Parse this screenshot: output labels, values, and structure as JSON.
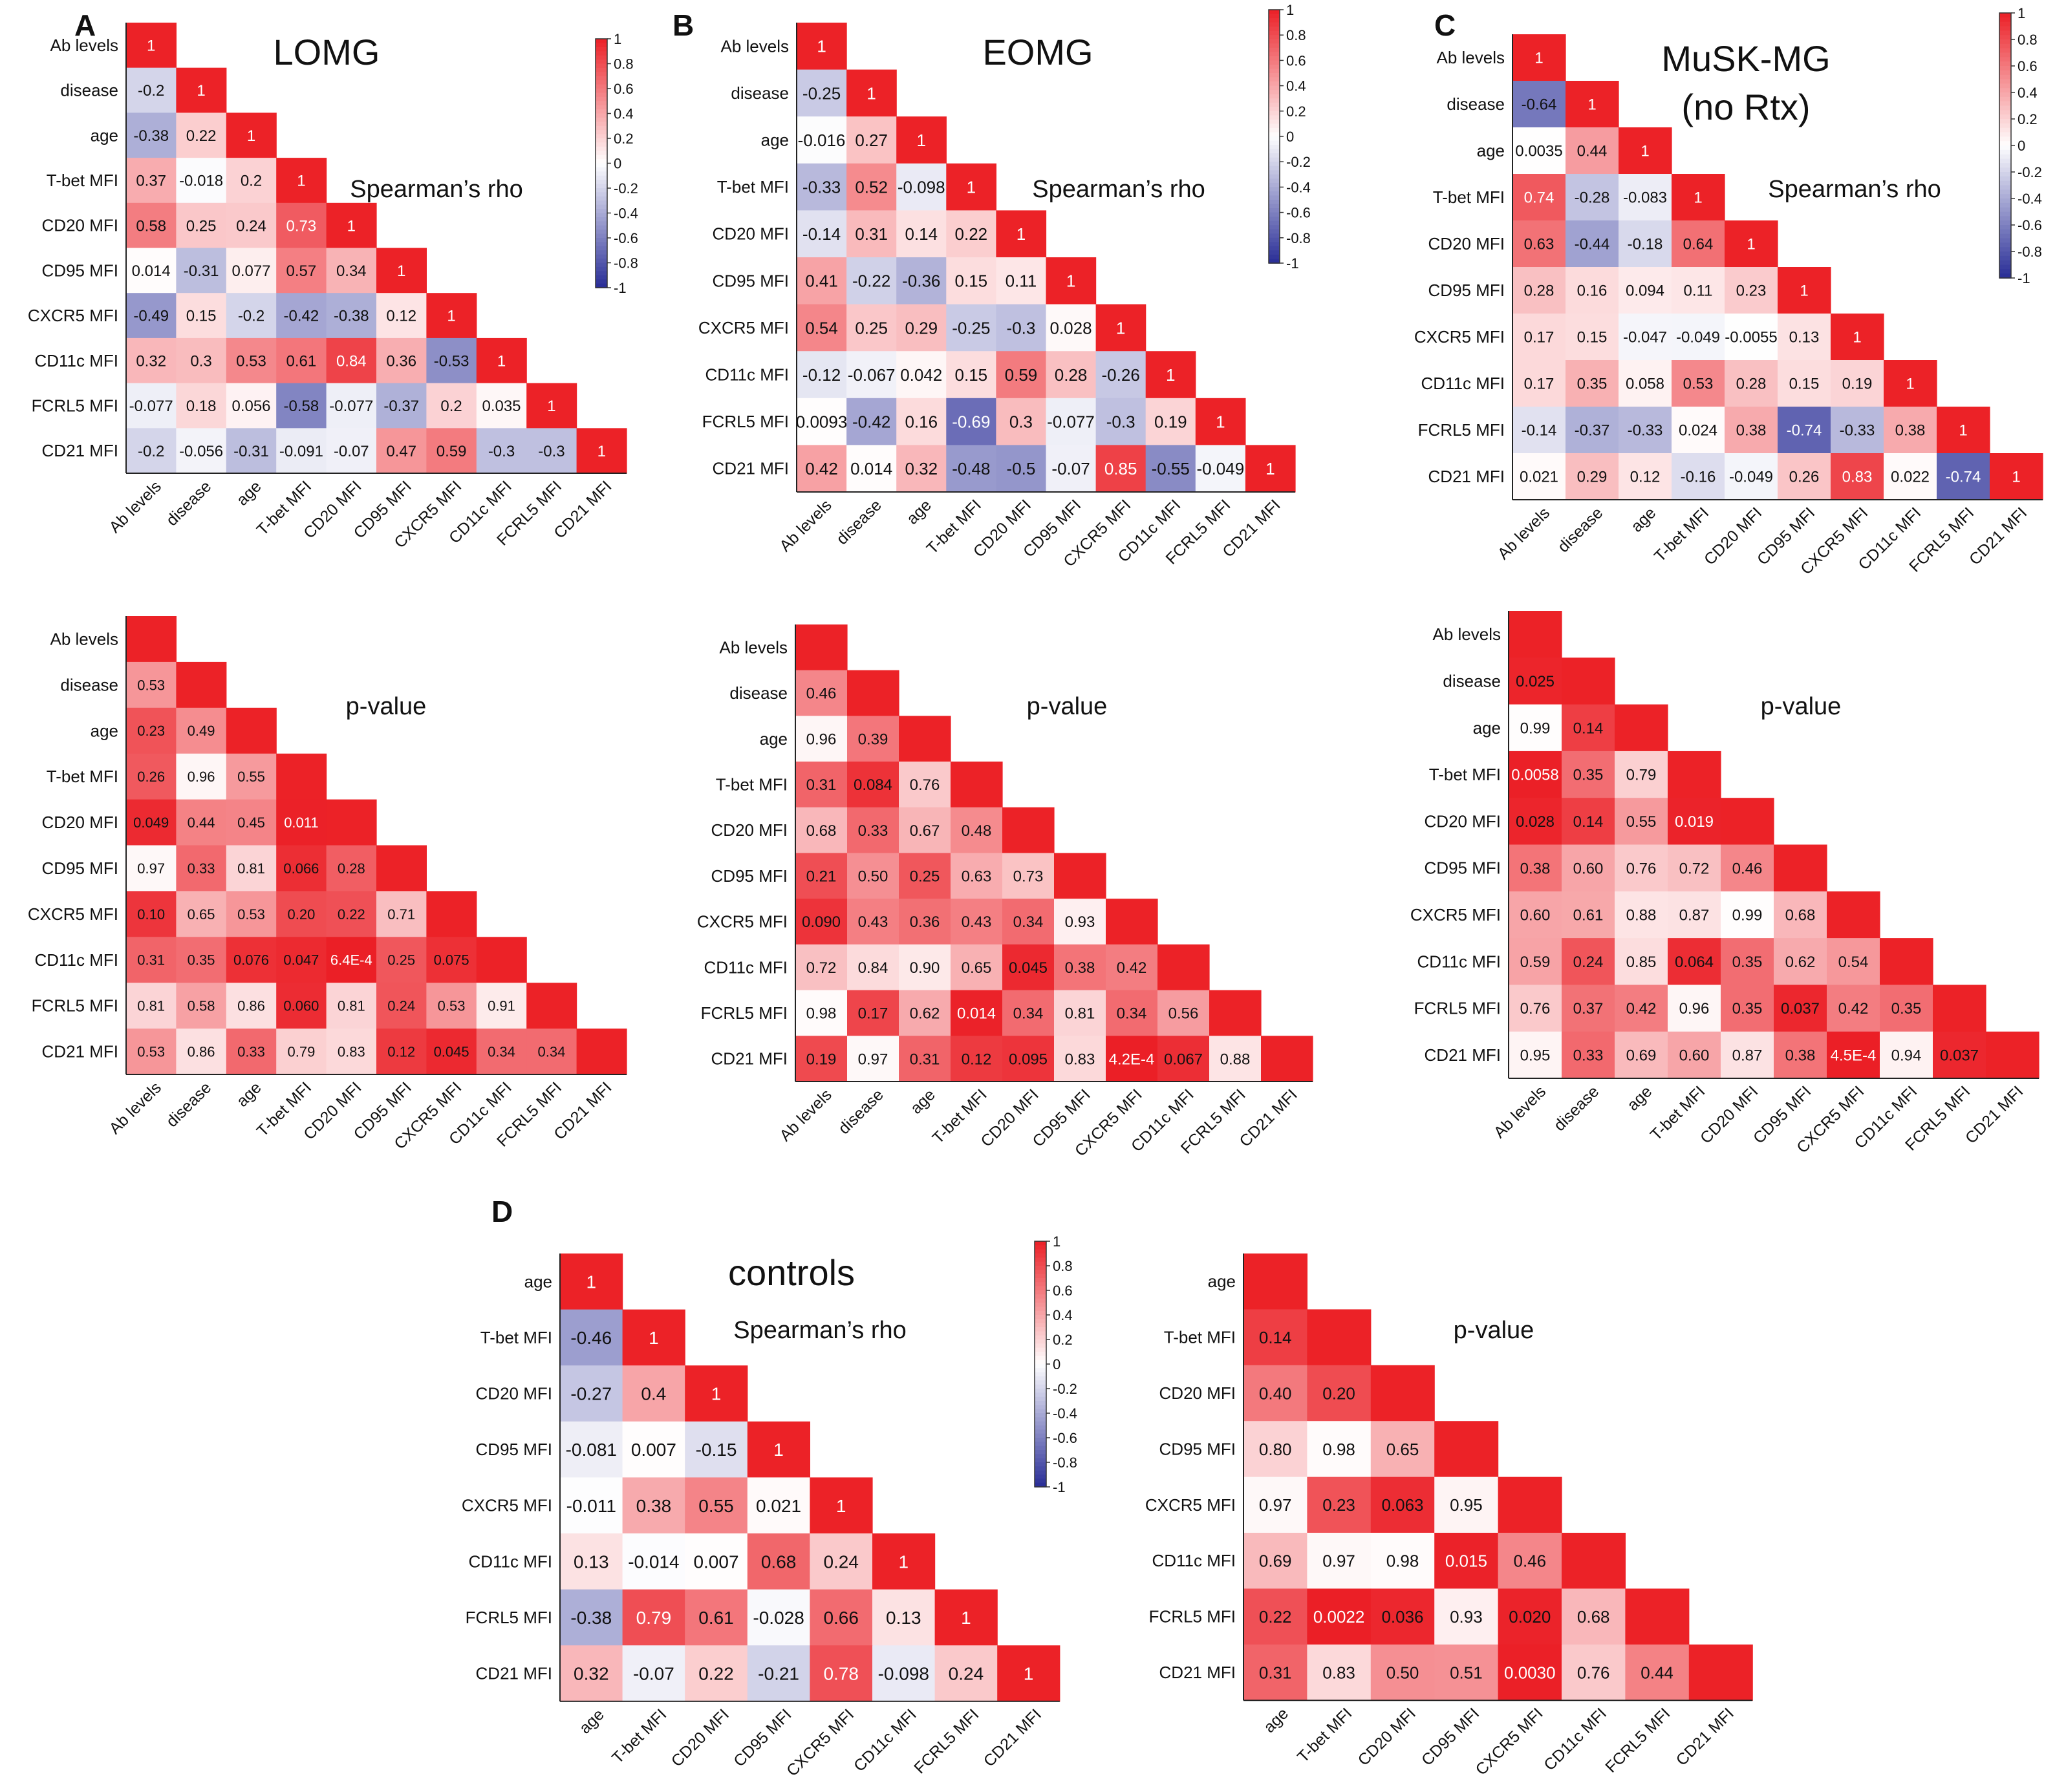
{
  "chart_data": [
    {
      "type": "heatmap",
      "panel": "A",
      "title": "LOMG",
      "subtitle": "Spearman’s rho",
      "variables": [
        "Ab levels",
        "disease",
        "age",
        "T-bet MFI",
        "CD20 MFI",
        "CD95 MFI",
        "CXCR5  MFI",
        "CD11c MFI",
        "FCRL5 MFI",
        "CD21 MFI"
      ],
      "labels": [
        [
          "1"
        ],
        [
          "-0.2",
          "1"
        ],
        [
          "-0.38",
          "0.22",
          "1"
        ],
        [
          "0.37",
          "-0.018",
          "0.2",
          "1"
        ],
        [
          "0.58",
          "0.25",
          "0.24",
          "0.73",
          "1"
        ],
        [
          "0.014",
          "-0.31",
          "0.077",
          "0.57",
          "0.34",
          "1"
        ],
        [
          "-0.49",
          "0.15",
          "-0.2",
          "-0.42",
          "-0.38",
          "0.12",
          "1"
        ],
        [
          "0.32",
          "0.3",
          "0.53",
          "0.61",
          "0.84",
          "0.36",
          "-0.53",
          "1"
        ],
        [
          "-0.077",
          "0.18",
          "0.056",
          "-0.58",
          "-0.077",
          "-0.37",
          "0.2",
          "0.035",
          "1"
        ],
        [
          "-0.2",
          "-0.056",
          "-0.31",
          "-0.091",
          "-0.07",
          "0.47",
          "0.59",
          "-0.3",
          "-0.3",
          "1"
        ]
      ],
      "colorbar": {
        "min": -1,
        "max": 1,
        "ticks": [
          "1",
          "0.8",
          "0.6",
          "0.4",
          "0.2",
          "0",
          "-0.2",
          "-0.4",
          "-0.6",
          "-0.8",
          "-1"
        ]
      }
    },
    {
      "type": "heatmap",
      "panel": "B",
      "title": "EOMG",
      "subtitle": "Spearman’s rho",
      "variables": [
        "Ab levels",
        "disease",
        "age",
        "T-bet MFI",
        "CD20 MFI",
        "CD95 MFI",
        "CXCR5  MFI",
        "CD11c MFI",
        "FCRL5 MFI",
        "CD21 MFI"
      ],
      "labels": [
        [
          "1"
        ],
        [
          "-0.25",
          "1"
        ],
        [
          "-0.016",
          "0.27",
          "1"
        ],
        [
          "-0.33",
          "0.52",
          "-0.098",
          "1"
        ],
        [
          "-0.14",
          "0.31",
          "0.14",
          "0.22",
          "1"
        ],
        [
          "0.41",
          "-0.22",
          "-0.36",
          "0.15",
          "0.11",
          "1"
        ],
        [
          "0.54",
          "0.25",
          "0.29",
          "-0.25",
          "-0.3",
          "0.028",
          "1"
        ],
        [
          "-0.12",
          "-0.067",
          "0.042",
          "0.15",
          "0.59",
          "0.28",
          "-0.26",
          "1"
        ],
        [
          "0.0093",
          "-0.42",
          "0.16",
          "-0.69",
          "0.3",
          "-0.077",
          "-0.3",
          "0.19",
          "1"
        ],
        [
          "0.42",
          "0.014",
          "0.32",
          "-0.48",
          "-0.5",
          "-0.07",
          "0.85",
          "-0.55",
          "-0.049",
          "1"
        ]
      ],
      "colorbar": {
        "min": -1,
        "max": 1,
        "ticks": [
          "1",
          "0.8",
          "0.6",
          "0.4",
          "0.2",
          "0",
          "-0.2",
          "-0.4",
          "-0.6",
          "-0.8",
          "-1"
        ]
      }
    },
    {
      "type": "heatmap",
      "panel": "C",
      "title": "MuSK-MG",
      "title_line2": "(no Rtx)",
      "subtitle": "Spearman’s rho",
      "variables": [
        "Ab levels",
        "disease",
        "age",
        "T-bet MFI",
        "CD20 MFI",
        "CD95 MFI",
        "CXCR5  MFI",
        "CD11c MFI",
        "FCRL5 MFI",
        "CD21 MFI"
      ],
      "labels": [
        [
          "1"
        ],
        [
          "-0.64",
          "1"
        ],
        [
          "0.0035",
          "0.44",
          "1"
        ],
        [
          "0.74",
          "-0.28",
          "-0.083",
          "1"
        ],
        [
          "0.63",
          "-0.44",
          "-0.18",
          "0.64",
          "1"
        ],
        [
          "0.28",
          "0.16",
          "0.094",
          "0.11",
          "0.23",
          "1"
        ],
        [
          "0.17",
          "0.15",
          "-0.047",
          "-0.049",
          "-0.0055",
          "0.13",
          "1"
        ],
        [
          "0.17",
          "0.35",
          "0.058",
          "0.53",
          "0.28",
          "0.15",
          "0.19",
          "1"
        ],
        [
          "-0.14",
          "-0.37",
          "-0.33",
          "0.024",
          "0.38",
          "-0.74",
          "-0.33",
          "0.38",
          "1"
        ],
        [
          "0.021",
          "0.29",
          "0.12",
          "-0.16",
          "-0.049",
          "0.26",
          "0.83",
          "0.022",
          "-0.74",
          "1"
        ]
      ],
      "colorbar": {
        "min": -1,
        "max": 1,
        "ticks": [
          "1",
          "0.8",
          "0.6",
          "0.4",
          "0.2",
          "0",
          "-0.2",
          "-0.4",
          "-0.6",
          "-0.8",
          "-1"
        ]
      }
    },
    {
      "type": "heatmap",
      "panel": "A",
      "subtitle": "p-value",
      "variables": [
        "Ab levels",
        "disease",
        "age",
        "T-bet MFI",
        "CD20 MFI",
        "CD95 MFI",
        "CXCR5  MFI",
        "CD11c MFI",
        "FCRL5 MFI",
        "CD21 MFI"
      ],
      "labels": [
        [
          ""
        ],
        [
          "0.53",
          ""
        ],
        [
          "0.23",
          "0.49",
          ""
        ],
        [
          "0.26",
          "0.96",
          "0.55",
          ""
        ],
        [
          "0.049",
          "0.44",
          "0.45",
          "0.011",
          ""
        ],
        [
          "0.97",
          "0.33",
          "0.81",
          "0.066",
          "0.28",
          ""
        ],
        [
          "0.10",
          "0.65",
          "0.53",
          "0.20",
          "0.22",
          "0.71",
          ""
        ],
        [
          "0.31",
          "0.35",
          "0.076",
          "0.047",
          "6.4E-4",
          "0.25",
          "0.075",
          ""
        ],
        [
          "0.81",
          "0.58",
          "0.86",
          "0.060",
          "0.81",
          "0.24",
          "0.53",
          "0.91",
          ""
        ],
        [
          "0.53",
          "0.86",
          "0.33",
          "0.79",
          "0.83",
          "0.12",
          "0.045",
          "0.34",
          "0.34",
          ""
        ]
      ]
    },
    {
      "type": "heatmap",
      "panel": "B",
      "subtitle": "p-value",
      "variables": [
        "Ab levels",
        "disease",
        "age",
        "T-bet MFI",
        "CD20 MFI",
        "CD95 MFI",
        "CXCR5  MFI",
        "CD11c MFI",
        "FCRL5 MFI",
        "CD21 MFI"
      ],
      "labels": [
        [
          ""
        ],
        [
          "0.46",
          ""
        ],
        [
          "0.96",
          "0.39",
          ""
        ],
        [
          "0.31",
          "0.084",
          "0.76",
          ""
        ],
        [
          "0.68",
          "0.33",
          "0.67",
          "0.48",
          ""
        ],
        [
          "0.21",
          "0.50",
          "0.25",
          "0.63",
          "0.73",
          ""
        ],
        [
          "0.090",
          "0.43",
          "0.36",
          "0.43",
          "0.34",
          "0.93",
          ""
        ],
        [
          "0.72",
          "0.84",
          "0.90",
          "0.65",
          "0.045",
          "0.38",
          "0.42",
          ""
        ],
        [
          "0.98",
          "0.17",
          "0.62",
          "0.014",
          "0.34",
          "0.81",
          "0.34",
          "0.56",
          ""
        ],
        [
          "0.19",
          "0.97",
          "0.31",
          "0.12",
          "0.095",
          "0.83",
          "4.2E-4",
          "0.067",
          "0.88",
          ""
        ]
      ]
    },
    {
      "type": "heatmap",
      "panel": "C",
      "subtitle": "p-value",
      "variables": [
        "Ab levels",
        "disease",
        "age",
        "T-bet MFI",
        "CD20 MFI",
        "CD95 MFI",
        "CXCR5  MFI",
        "CD11c MFI",
        "FCRL5 MFI",
        "CD21 MFI"
      ],
      "labels": [
        [
          ""
        ],
        [
          "0.025",
          ""
        ],
        [
          "0.99",
          "0.14",
          ""
        ],
        [
          "0.0058",
          "0.35",
          "0.79",
          ""
        ],
        [
          "0.028",
          "0.14",
          "0.55",
          "0.019",
          ""
        ],
        [
          "0.38",
          "0.60",
          "0.76",
          "0.72",
          "0.46",
          ""
        ],
        [
          "0.60",
          "0.61",
          "0.88",
          "0.87",
          "0.99",
          "0.68",
          ""
        ],
        [
          "0.59",
          "0.24",
          "0.85",
          "0.064",
          "0.35",
          "0.62",
          "0.54",
          ""
        ],
        [
          "0.76",
          "0.37",
          "0.42",
          "0.96",
          "0.35",
          "0.037",
          "0.42",
          "0.35",
          ""
        ],
        [
          "0.95",
          "0.33",
          "0.69",
          "0.60",
          "0.87",
          "0.38",
          "4.5E-4",
          "0.94",
          "0.037",
          ""
        ]
      ]
    },
    {
      "type": "heatmap",
      "panel": "D",
      "title": "controls",
      "subtitle": "Spearman’s rho",
      "variables": [
        "age",
        "T-bet MFI",
        "CD20 MFI",
        "CD95 MFI",
        "CXCR5  MFI",
        "CD11c MFI",
        "FCRL5 MFI",
        "CD21 MFI"
      ],
      "labels": [
        [
          "1"
        ],
        [
          "-0.46",
          "1"
        ],
        [
          "-0.27",
          "0.4",
          "1"
        ],
        [
          "-0.081",
          "0.007",
          "-0.15",
          "1"
        ],
        [
          "-0.011",
          "0.38",
          "0.55",
          "0.021",
          "1"
        ],
        [
          "0.13",
          "-0.014",
          "0.007",
          "0.68",
          "0.24",
          "1"
        ],
        [
          "-0.38",
          "0.79",
          "0.61",
          "-0.028",
          "0.66",
          "0.13",
          "1"
        ],
        [
          "0.32",
          "-0.07",
          "0.22",
          "-0.21",
          "0.78",
          "-0.098",
          "0.24",
          "1"
        ]
      ],
      "colorbar": {
        "min": -1,
        "max": 1,
        "ticks": [
          "1",
          "0.8",
          "0.6",
          "0.4",
          "0.2",
          "0",
          "-0.2",
          "-0.4",
          "-0.6",
          "-0.8",
          "-1"
        ]
      }
    },
    {
      "type": "heatmap",
      "panel": "D",
      "subtitle": "p-value",
      "variables": [
        "age",
        "T-bet MFI",
        "CD20 MFI",
        "CD95 MFI",
        "CXCR5  MFI",
        "CD11c MFI",
        "FCRL5 MFI",
        "CD21 MFI"
      ],
      "labels": [
        [
          ""
        ],
        [
          "0.14",
          ""
        ],
        [
          "0.40",
          "0.20",
          ""
        ],
        [
          "0.80",
          "0.98",
          "0.65",
          ""
        ],
        [
          "0.97",
          "0.23",
          "0.063",
          "0.95",
          ""
        ],
        [
          "0.69",
          "0.97",
          "0.98",
          "0.015",
          "0.46",
          ""
        ],
        [
          "0.22",
          "0.0022",
          "0.036",
          "0.93",
          "0.020",
          "0.68",
          ""
        ],
        [
          "0.31",
          "0.83",
          "0.50",
          "0.51",
          "0.0030",
          "0.76",
          "0.44",
          ""
        ]
      ]
    }
  ]
}
